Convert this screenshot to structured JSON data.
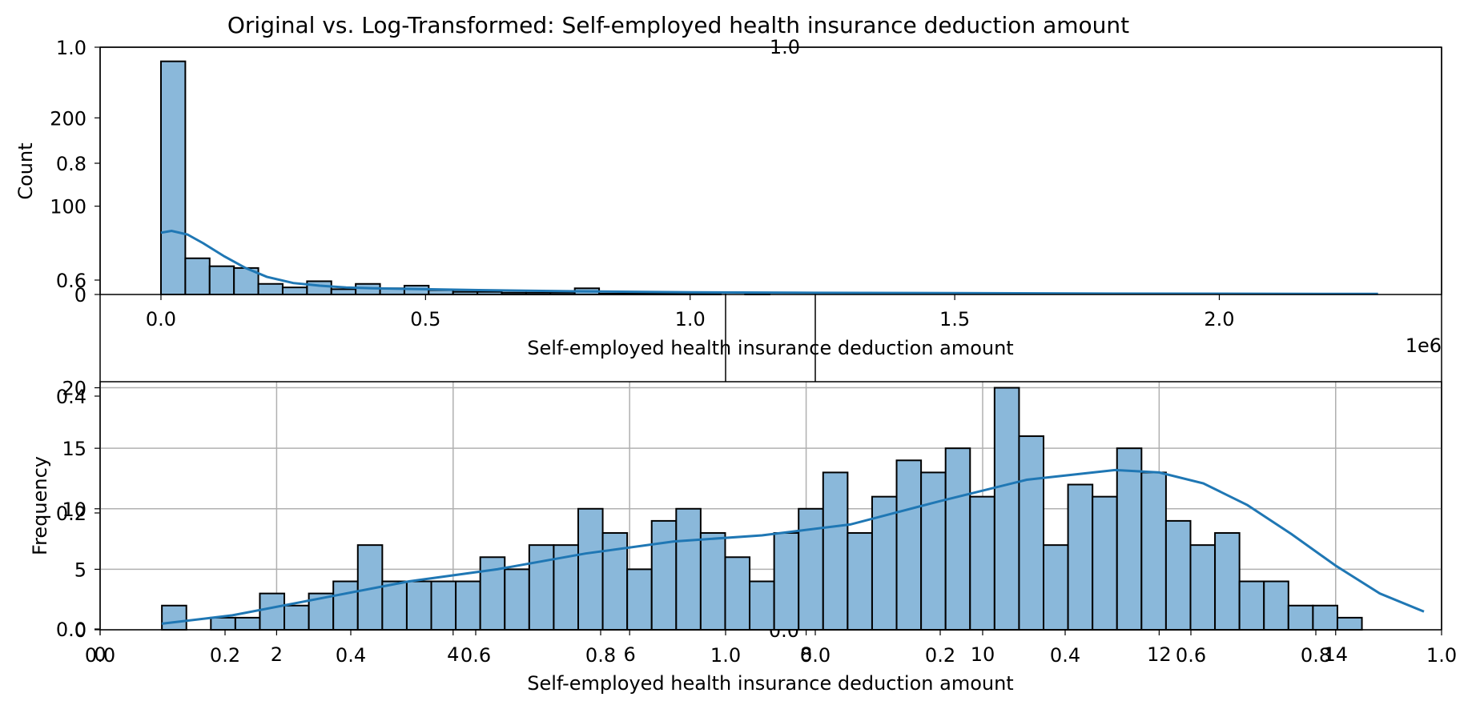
{
  "figure_title": "Original vs. Log-Transformed: Self-employed health insurance deduction amount",
  "colors": {
    "bar_fill": "#8ab8da",
    "bar_edge": "#000000",
    "kde_line": "#1f77b4",
    "grid": "#b0b0b0"
  },
  "chart_data": [
    {
      "type": "bar",
      "subtype": "histogram",
      "panel": "top",
      "xlabel": "Self-employed health insurance deduction amount",
      "ylabel": "Count",
      "x_offset_text": "1e6",
      "x_range": [
        -0.115,
        2.42
      ],
      "y_range": [
        0,
        280
      ],
      "grid": false,
      "bin_start": 0.0,
      "bin_width": 0.046,
      "counts": [
        264,
        41,
        32,
        30,
        12,
        8,
        15,
        6,
        12,
        7,
        10,
        5,
        3,
        3,
        2,
        2,
        2,
        7,
        1,
        1,
        1,
        1,
        1,
        0,
        1,
        0,
        0,
        0,
        0,
        0,
        0,
        0,
        0,
        0,
        0,
        0,
        0,
        0,
        0,
        0,
        0,
        0,
        0,
        0,
        0,
        0,
        0,
        0,
        0,
        0
      ],
      "kde": {
        "x": [
          0.0,
          0.02,
          0.05,
          0.08,
          0.12,
          0.16,
          0.2,
          0.25,
          0.3,
          0.35,
          0.4,
          0.5,
          0.6,
          0.8,
          1.0,
          1.2,
          1.5,
          1.8,
          2.1,
          2.3
        ],
        "y": [
          70,
          72,
          68,
          58,
          43,
          30,
          20,
          13,
          10,
          8,
          7,
          6,
          5,
          3.5,
          2.5,
          2,
          1.5,
          1,
          0.8,
          0.6
        ]
      },
      "x_ticks": [
        "0.0",
        "0.5",
        "1.0",
        "1.5",
        "2.0"
      ],
      "x_tick_values": [
        0.0,
        0.5,
        1.0,
        1.5,
        2.0
      ],
      "y_ticks": [
        "0",
        "100",
        "200"
      ],
      "y_tick_values": [
        0,
        100,
        200
      ]
    },
    {
      "type": "bar",
      "subtype": "histogram",
      "panel": "bottom",
      "xlabel": "Self-employed health insurance deduction amount",
      "ylabel": "Frequency",
      "x_range": [
        0,
        15.2
      ],
      "y_range": [
        0,
        20.5
      ],
      "grid": true,
      "bin_start": 0.7,
      "bin_width": 0.2775,
      "counts": [
        2,
        0,
        1,
        1,
        3,
        2,
        3,
        4,
        7,
        4,
        4,
        4,
        4,
        6,
        5,
        7,
        7,
        10,
        8,
        5,
        9,
        10,
        8,
        6,
        4,
        8,
        10,
        13,
        8,
        11,
        14,
        13,
        15,
        11,
        20,
        16,
        7,
        12,
        11,
        15,
        13,
        9,
        7,
        8,
        4,
        4,
        2,
        2,
        1
      ],
      "kde": {
        "x": [
          0.7,
          1.5,
          2.5,
          3.5,
          4.5,
          5.5,
          6.5,
          7.5,
          8.5,
          9.5,
          10.5,
          11.5,
          12.0,
          12.5,
          13.0,
          13.5,
          14.0,
          14.5,
          15.0
        ],
        "y": [
          0.5,
          1.2,
          2.6,
          4.0,
          5.0,
          6.3,
          7.3,
          7.8,
          8.7,
          10.6,
          12.4,
          13.2,
          13.0,
          12.1,
          10.3,
          7.9,
          5.3,
          3.0,
          1.5
        ]
      },
      "x_ticks": [
        "0",
        "2",
        "4",
        "6",
        "8",
        "10",
        "12",
        "14"
      ],
      "x_tick_values": [
        0,
        2,
        4,
        6,
        8,
        10,
        12,
        14
      ],
      "y_ticks": [
        "0",
        "5",
        "10",
        "15",
        "20"
      ],
      "y_tick_values": [
        0,
        5,
        10,
        15,
        20
      ]
    }
  ],
  "overlay_axes": {
    "y_ticks_top_band": [
      "1.0",
      "0.8",
      "0.6"
    ],
    "y_ticks_bottom_band": [
      "0.4",
      "0.2",
      "0.0"
    ],
    "x_ticks_left": [
      "0.0",
      "0.2",
      "0.4",
      "0.6",
      "0.8",
      "1.0"
    ],
    "x_ticks_right": [
      "0.0",
      "0.2",
      "0.4",
      "0.6",
      "0.8",
      "1.0"
    ],
    "top_stray_label": "1.0",
    "middle_stray_label": "0.0"
  }
}
